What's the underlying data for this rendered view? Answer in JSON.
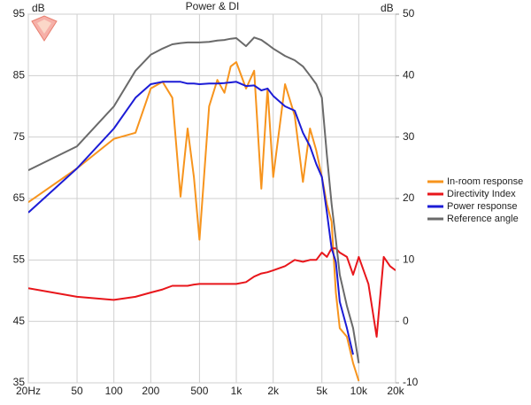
{
  "chart_data": {
    "type": "line",
    "title": "Power & DI",
    "y_label": "dB",
    "y2_label": "dB",
    "x_scale": "log",
    "grid": true,
    "legend": "right",
    "xlim": [
      20,
      20000
    ],
    "xticks": [
      {
        "value": 20,
        "label": "20Hz"
      },
      50,
      100,
      200,
      500,
      {
        "value": 1000,
        "label": "1k"
      },
      {
        "value": 2000,
        "label": "2k"
      },
      {
        "value": 5000,
        "label": "5k"
      },
      {
        "value": 10000,
        "label": "10k"
      },
      {
        "value": 20000,
        "label": "20k"
      }
    ],
    "ylim": [
      35,
      95
    ],
    "yticks": [
      35,
      45,
      55,
      65,
      75,
      85,
      95
    ],
    "y2lim": [
      -10,
      50
    ],
    "y2ticks": [
      -10,
      0,
      10,
      20,
      30,
      40,
      50
    ],
    "x": [
      20,
      50,
      100,
      150,
      200,
      250,
      300,
      350,
      400,
      450,
      500,
      600,
      700,
      800,
      900,
      1000,
      1200,
      1400,
      1600,
      1800,
      2000,
      2500,
      3000,
      3500,
      4000,
      4500,
      5000,
      5500,
      6000,
      6500,
      7000,
      8000,
      9000,
      10000,
      12000,
      14000,
      16000,
      18000,
      20000
    ],
    "series": [
      {
        "name": "In-room response",
        "color": "#f7941d",
        "values": [
          64.4,
          69.9,
          74.7,
          75.7,
          82.9,
          84,
          81.4,
          65.3,
          76.4,
          68.5,
          58.3,
          80,
          84.3,
          82.2,
          86.5,
          87.2,
          82.9,
          85.8,
          66.6,
          82.9,
          68.5,
          83.6,
          78.5,
          67.7,
          76.4,
          72.8,
          68.5,
          64.1,
          61.2,
          49.7,
          43.9,
          42.5,
          38.2,
          35.3,
          null,
          null,
          null,
          null,
          null
        ]
      },
      {
        "name": "Directivity Index",
        "color": "#e8161b",
        "axis": "y2",
        "values": [
          5.4,
          4,
          3.5,
          4,
          4.7,
          5.2,
          5.8,
          5.8,
          5.8,
          6,
          6.1,
          6.1,
          6.1,
          6.1,
          6.1,
          6.1,
          6.4,
          7.3,
          7.8,
          8,
          8.3,
          9,
          10,
          9.7,
          10,
          10,
          11.2,
          10.5,
          11.9,
          11.9,
          11.2,
          10.5,
          7.6,
          10.5,
          6.1,
          -2.5,
          10.5,
          9,
          8.3
        ]
      },
      {
        "name": "Power response",
        "color": "#1c1cd6",
        "values": [
          62.7,
          69.9,
          76.4,
          81.4,
          83.6,
          84,
          84,
          84,
          83.7,
          83.7,
          83.6,
          83.7,
          83.7,
          83.8,
          83.9,
          84,
          83.3,
          83.4,
          82.6,
          82.9,
          81.7,
          80,
          79.3,
          75.7,
          73.5,
          70.6,
          68.5,
          62.7,
          56.9,
          54.7,
          48.2,
          43.9,
          39.6,
          null,
          null,
          null,
          null,
          null,
          null
        ]
      },
      {
        "name": "Reference angle",
        "color": "#6a6a6a",
        "values": [
          69.6,
          73.5,
          80,
          85.8,
          88.4,
          89.4,
          90.1,
          90.3,
          90.4,
          90.4,
          90.4,
          90.5,
          90.7,
          90.8,
          91,
          91.1,
          89.8,
          91.2,
          90.8,
          90.1,
          89.4,
          88.2,
          87.5,
          86.5,
          85,
          83.6,
          81.4,
          72,
          64.1,
          58.3,
          52.6,
          47.5,
          43.9,
          38.2,
          null,
          null,
          null,
          null,
          null
        ]
      }
    ]
  }
}
